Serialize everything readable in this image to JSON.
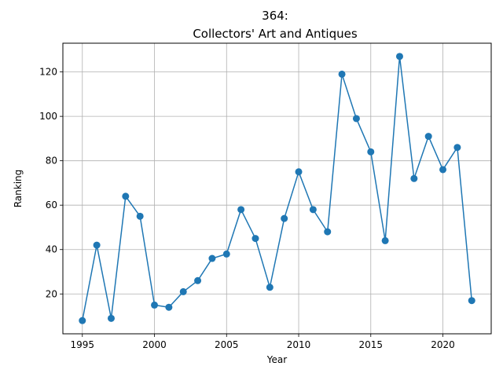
{
  "chart_data": {
    "type": "line",
    "title_line1": "364:",
    "title_line2": "Collectors' Art and Antiques",
    "xlabel": "Year",
    "ylabel": "Ranking",
    "xlim": [
      1993.65,
      2023.35
    ],
    "ylim": [
      2.05,
      132.95
    ],
    "xticks": [
      1995,
      2000,
      2005,
      2010,
      2015,
      2020
    ],
    "yticks": [
      20,
      40,
      60,
      80,
      100,
      120
    ],
    "grid": true,
    "color": "#1f77b4",
    "x": [
      1995,
      1996,
      1997,
      1998,
      1999,
      2000,
      2001,
      2002,
      2003,
      2004,
      2005,
      2006,
      2007,
      2008,
      2009,
      2010,
      2011,
      2012,
      2013,
      2014,
      2015,
      2016,
      2017,
      2018,
      2019,
      2020,
      2021,
      2022
    ],
    "y": [
      8,
      42,
      9,
      64,
      55,
      15,
      14,
      21,
      26,
      36,
      38,
      58,
      45,
      23,
      54,
      75,
      58,
      48,
      119,
      99,
      84,
      44,
      127,
      72,
      91,
      76,
      86,
      17
    ]
  }
}
